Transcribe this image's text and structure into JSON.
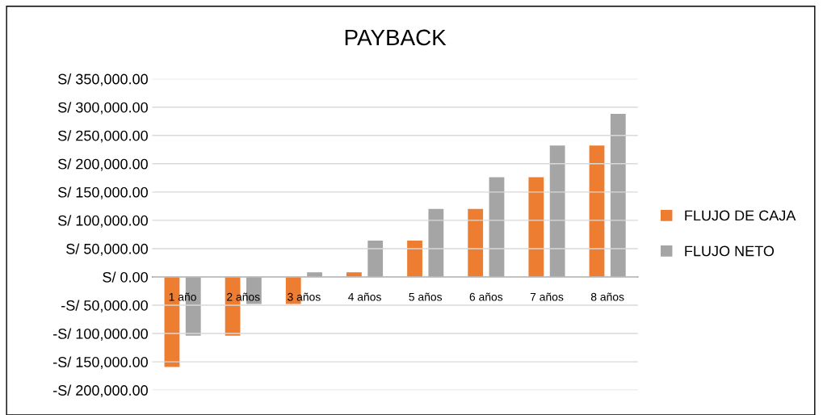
{
  "chart_data": {
    "type": "bar",
    "title": "PAYBACK",
    "categories": [
      "1 año",
      "2 años",
      "3 años",
      "4 años",
      "5 años",
      "6 años",
      "7 años",
      "8 años"
    ],
    "series": [
      {
        "name": "FLUJO DE CAJA",
        "color": "#ed7d31",
        "values": [
          -159000,
          -104000,
          -48000,
          8000,
          64000,
          120000,
          176000,
          232000
        ]
      },
      {
        "name": "FLUJO NETO",
        "color": "#a5a5a5",
        "values": [
          -104000,
          -48000,
          8000,
          64000,
          120000,
          176000,
          232000,
          288000
        ]
      }
    ],
    "ylim": [
      -200000,
      350000
    ],
    "yticks": [
      {
        "value": -200000,
        "label": "-S/ 200,000.00"
      },
      {
        "value": -150000,
        "label": "-S/ 150,000.00"
      },
      {
        "value": -100000,
        "label": "-S/ 100,000.00"
      },
      {
        "value": -50000,
        "label": "-S/ 50,000.00"
      },
      {
        "value": 0,
        "label": "S/ 0.00"
      },
      {
        "value": 50000,
        "label": "S/ 50,000.00"
      },
      {
        "value": 100000,
        "label": "S/ 100,000.00"
      },
      {
        "value": 150000,
        "label": "S/ 150,000.00"
      },
      {
        "value": 200000,
        "label": "S/ 200,000.00"
      },
      {
        "value": 250000,
        "label": "S/ 250,000.00"
      },
      {
        "value": 300000,
        "label": "S/ 300,000.00"
      },
      {
        "value": 350000,
        "label": "S/ 350,000.00"
      }
    ],
    "grid": "y",
    "legend": "right"
  }
}
